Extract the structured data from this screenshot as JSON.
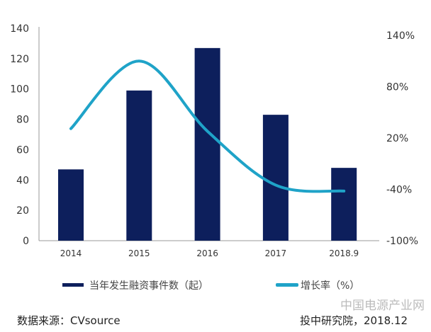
{
  "chart_data": {
    "type": "bar+line",
    "categories": [
      "2014",
      "2015",
      "2016",
      "2017",
      "2018.9"
    ],
    "series": [
      {
        "name": "当年发生融资事件数（起）",
        "type": "bar",
        "axis": "left",
        "color": "#0d1f5c",
        "values": [
          47,
          99,
          127,
          83,
          48
        ]
      },
      {
        "name": "增长率（%）",
        "type": "line",
        "axis": "right",
        "color": "#1fa3c8",
        "values": [
          31,
          110,
          28,
          -35,
          -42
        ]
      }
    ],
    "left_axis": {
      "ticks": [
        "0",
        "20",
        "40",
        "60",
        "80",
        "100",
        "120",
        "140"
      ],
      "ylim": [
        0,
        140
      ]
    },
    "right_axis": {
      "ticks": [
        "-100%",
        "-40%",
        "20%",
        "80%",
        "140%"
      ],
      "ylim": [
        -100,
        140
      ]
    },
    "legend_placement": "bottom",
    "grid": false
  },
  "footer": {
    "source": "数据来源：CVsource",
    "credit": "投中研究院，2018.12",
    "watermark": "中国电源产业网"
  }
}
